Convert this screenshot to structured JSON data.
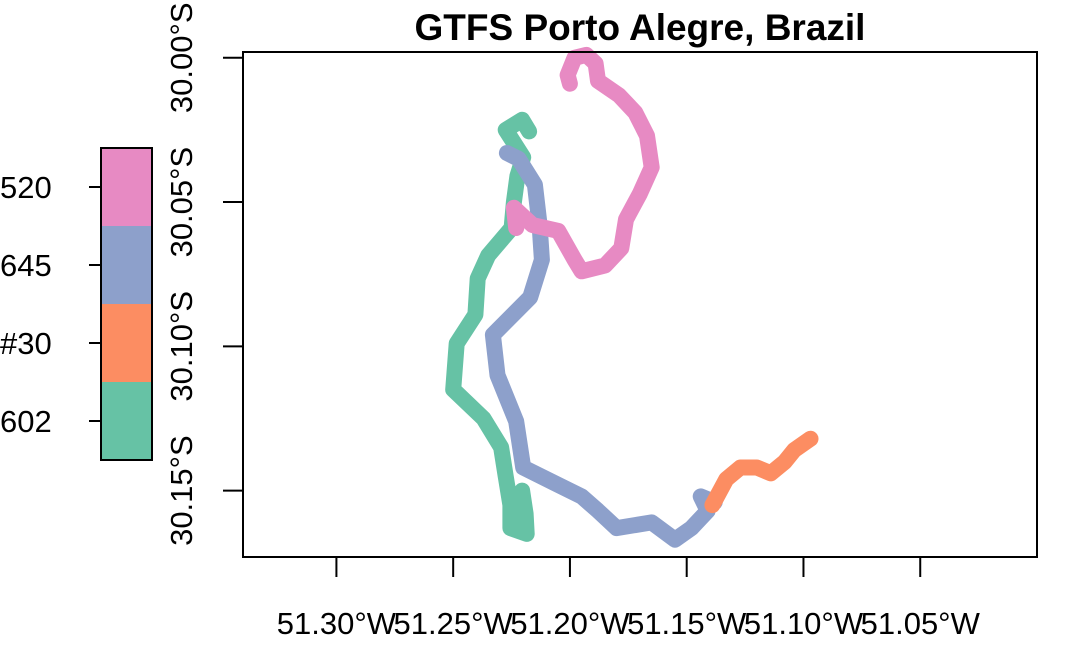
{
  "chart_data": {
    "type": "line",
    "title": "GTFS Porto Alegre, Brazil",
    "xlim": [
      -51.34,
      -51.0
    ],
    "ylim": [
      -30.173,
      -29.998
    ],
    "x_ticks": [
      {
        "value": -51.3,
        "label": "51.30°W"
      },
      {
        "value": -51.25,
        "label": "51.25°W"
      },
      {
        "value": -51.2,
        "label": "51.20°W"
      },
      {
        "value": -51.15,
        "label": "51.15°W"
      },
      {
        "value": -51.1,
        "label": "51.10°W"
      },
      {
        "value": -51.05,
        "label": "51.05°W"
      }
    ],
    "y_ticks": [
      {
        "value": -30.0,
        "label": "30.00°S"
      },
      {
        "value": -30.05,
        "label": "30.05°S"
      },
      {
        "value": -30.1,
        "label": "30.10°S"
      },
      {
        "value": -30.15,
        "label": "30.15°S"
      }
    ],
    "grid": false,
    "legend": {
      "position": "left",
      "entries": [
        {
          "label": "520",
          "color": "#E78AC3"
        },
        {
          "label": "645",
          "color": "#8DA0CB"
        },
        {
          "label": "#30",
          "color": "#FC8D62"
        },
        {
          "label": "602",
          "color": "#66C2A5"
        }
      ]
    },
    "series": [
      {
        "name": "602",
        "color": "#66C2A5",
        "points": [
          [
            -51.2175,
            -30.0255
          ],
          [
            -51.2205,
            -30.0215
          ],
          [
            -51.2275,
            -30.025
          ],
          [
            -51.22,
            -30.0345
          ],
          [
            -51.2225,
            -30.041
          ],
          [
            -51.224,
            -30.05
          ],
          [
            -51.225,
            -30.059
          ],
          [
            -51.235,
            -30.0685
          ],
          [
            -51.2395,
            -30.0765
          ],
          [
            -51.2405,
            -30.089
          ],
          [
            -51.2485,
            -30.099
          ],
          [
            -51.25,
            -30.115
          ],
          [
            -51.237,
            -30.125
          ],
          [
            -51.2295,
            -30.135
          ],
          [
            -51.2275,
            -30.145
          ],
          [
            -51.2255,
            -30.155
          ],
          [
            -51.2255,
            -30.163
          ],
          [
            -51.2185,
            -30.165
          ],
          [
            -51.219,
            -30.158
          ],
          [
            -51.2205,
            -30.15
          ]
        ]
      },
      {
        "name": "645",
        "color": "#8DA0CB",
        "points": [
          [
            -51.227,
            -30.033
          ],
          [
            -51.222,
            -30.035
          ],
          [
            -51.215,
            -30.044
          ],
          [
            -51.213,
            -30.058
          ],
          [
            -51.212,
            -30.07
          ],
          [
            -51.217,
            -30.083
          ],
          [
            -51.233,
            -30.096
          ],
          [
            -51.231,
            -30.11
          ],
          [
            -51.223,
            -30.126
          ],
          [
            -51.22,
            -30.142
          ],
          [
            -51.205,
            -30.148
          ],
          [
            -51.195,
            -30.152
          ],
          [
            -51.188,
            -30.157
          ],
          [
            -51.18,
            -30.163
          ],
          [
            -51.165,
            -30.161
          ],
          [
            -51.155,
            -30.167
          ],
          [
            -51.148,
            -30.163
          ],
          [
            -51.141,
            -30.157
          ],
          [
            -51.144,
            -30.152
          ],
          [
            -51.138,
            -30.154
          ]
        ]
      },
      {
        "name": "#30",
        "color": "#FC8D62",
        "points": [
          [
            -51.139,
            -30.155
          ],
          [
            -51.133,
            -30.146
          ],
          [
            -51.127,
            -30.142
          ],
          [
            -51.12,
            -30.142
          ],
          [
            -51.114,
            -30.144
          ],
          [
            -51.108,
            -30.14
          ],
          [
            -51.104,
            -30.136
          ],
          [
            -51.097,
            -30.132
          ]
        ]
      },
      {
        "name": "520",
        "color": "#E78AC3",
        "points": [
          [
            -51.223,
            -30.059
          ],
          [
            -51.224,
            -30.052
          ],
          [
            -51.216,
            -30.058
          ],
          [
            -51.205,
            -30.06
          ],
          [
            -51.198,
            -30.07
          ],
          [
            -51.195,
            -30.074
          ],
          [
            -51.185,
            -30.072
          ],
          [
            -51.178,
            -30.066
          ],
          [
            -51.176,
            -30.056
          ],
          [
            -51.17,
            -30.047
          ],
          [
            -51.165,
            -30.038
          ],
          [
            -51.167,
            -30.027
          ],
          [
            -51.172,
            -30.019
          ],
          [
            -51.179,
            -30.013
          ],
          [
            -51.188,
            -30.008
          ],
          [
            -51.189,
            -30.002
          ],
          [
            -51.193,
            -29.999
          ],
          [
            -51.198,
            -30.0
          ],
          [
            -51.201,
            -30.006
          ],
          [
            -51.2,
            -30.009
          ]
        ]
      }
    ]
  }
}
